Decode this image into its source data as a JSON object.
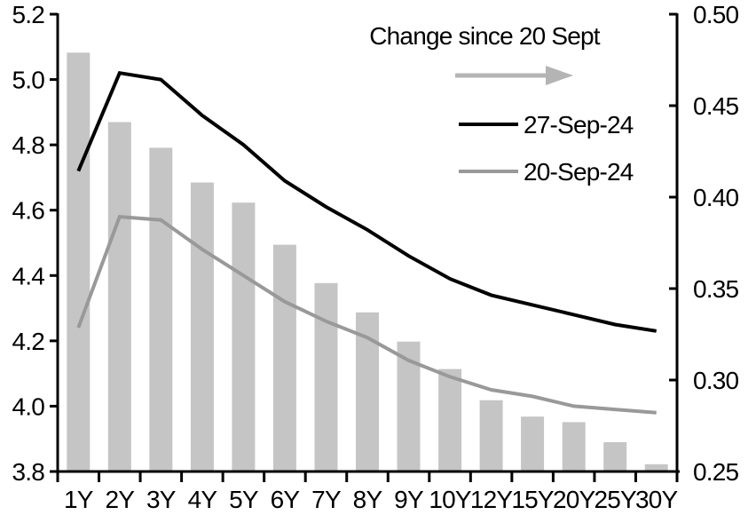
{
  "chart_data": {
    "type": "combo",
    "title": "",
    "categories": [
      "1Y",
      "2Y",
      "3Y",
      "4Y",
      "5Y",
      "6Y",
      "7Y",
      "8Y",
      "9Y",
      "10Y",
      "12Y",
      "15Y",
      "20Y",
      "25Y",
      "30Y"
    ],
    "series": [
      {
        "name": "Change since 20 Sept",
        "type": "bar",
        "axis": "right",
        "color": "#c5c5c5",
        "values": [
          0.479,
          0.441,
          0.427,
          0.408,
          0.397,
          0.374,
          0.353,
          0.337,
          0.321,
          0.306,
          0.289,
          0.28,
          0.277,
          0.266,
          0.254
        ]
      },
      {
        "name": "27-Sep-24",
        "type": "line",
        "axis": "left",
        "color": "#000000",
        "values": [
          4.72,
          5.02,
          5.0,
          4.89,
          4.8,
          4.69,
          4.61,
          4.54,
          4.46,
          4.39,
          4.34,
          4.31,
          4.28,
          4.25,
          4.23
        ]
      },
      {
        "name": "20-Sep-24",
        "type": "line",
        "axis": "left",
        "color": "#999999",
        "values": [
          4.24,
          4.58,
          4.57,
          4.48,
          4.4,
          4.32,
          4.26,
          4.21,
          4.14,
          4.09,
          4.05,
          4.03,
          4.0,
          3.99,
          3.98
        ]
      }
    ],
    "left_axis": {
      "ylim": [
        3.8,
        5.2
      ],
      "ticks": [
        "5.2",
        "5.0",
        "4.8",
        "4.6",
        "4.4",
        "4.2",
        "4.0",
        "3.8"
      ]
    },
    "right_axis": {
      "ylim": [
        0.25,
        0.5
      ],
      "ticks": [
        "0.50",
        "0.45",
        "0.40",
        "0.35",
        "0.30",
        "0.25"
      ]
    },
    "xlabel": "",
    "ylabel": "",
    "grid": false,
    "legend_position": "top-right-inside",
    "legend": {
      "annotation": "Change since 20 Sept",
      "arrow_color": "#b4b4b4",
      "items": [
        {
          "label": "27-Sep-24",
          "color": "#000000"
        },
        {
          "label": "20-Sep-24",
          "color": "#999999"
        }
      ]
    }
  }
}
